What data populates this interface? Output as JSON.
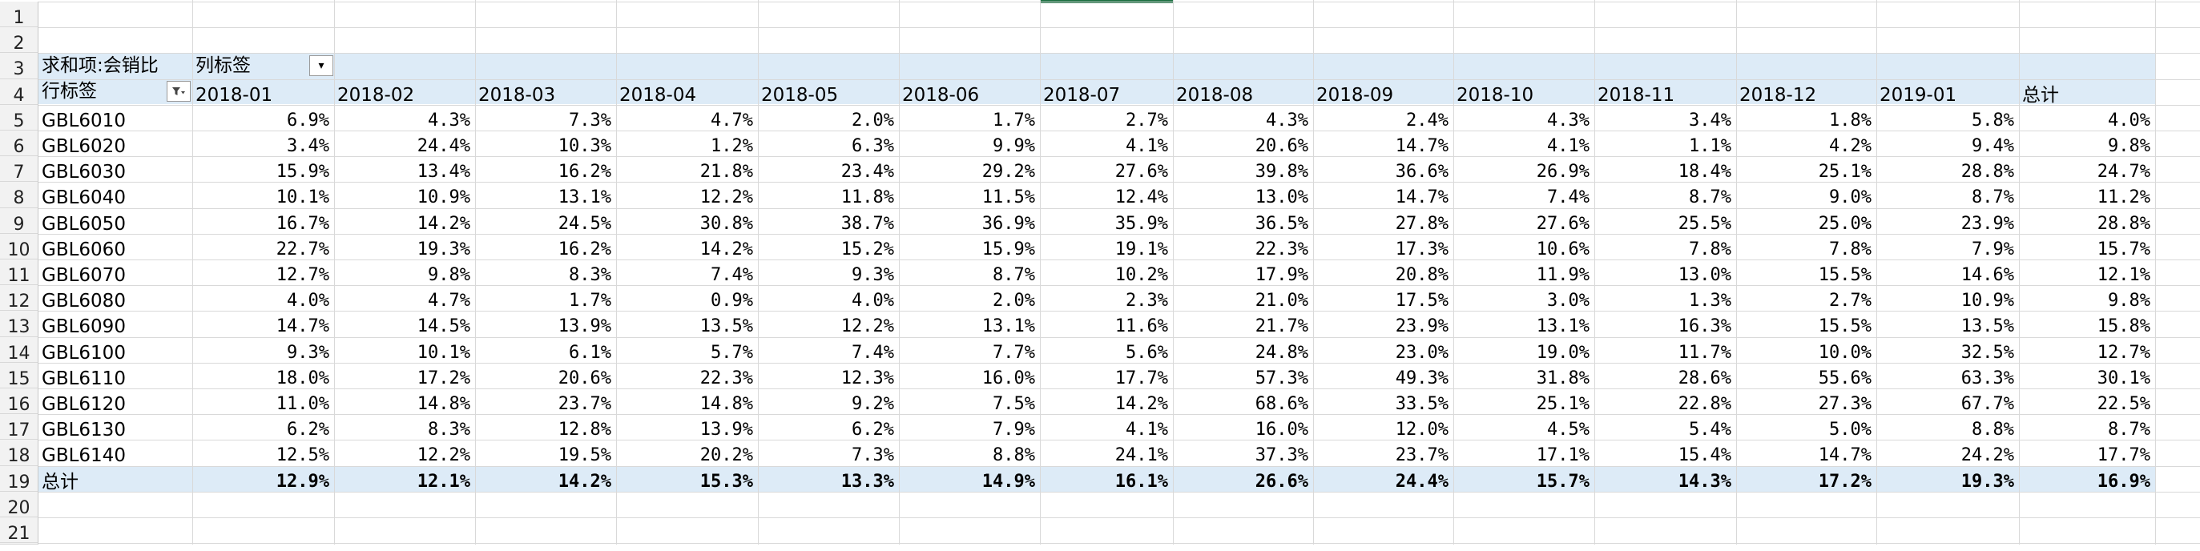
{
  "sheet": {
    "row_numbers": [
      "1",
      "2",
      "3",
      "4",
      "5",
      "6",
      "7",
      "8",
      "9",
      "10",
      "11",
      "12",
      "13",
      "14",
      "15",
      "16",
      "17",
      "18",
      "19",
      "20",
      "21"
    ],
    "pivot": {
      "values_label": "求和项:会销比",
      "column_labels": "列标签",
      "row_labels": "行标签",
      "columns": [
        "2018-01",
        "2018-02",
        "2018-03",
        "2018-04",
        "2018-05",
        "2018-06",
        "2018-07",
        "2018-08",
        "2018-09",
        "2018-10",
        "2018-11",
        "2018-12",
        "2019-01",
        "总计"
      ],
      "rows": [
        {
          "label": "GBL6010",
          "values": [
            "6.9%",
            "4.3%",
            "7.3%",
            "4.7%",
            "2.0%",
            "1.7%",
            "2.7%",
            "4.3%",
            "2.4%",
            "4.3%",
            "3.4%",
            "1.8%",
            "5.8%",
            "4.0%"
          ]
        },
        {
          "label": "GBL6020",
          "values": [
            "3.4%",
            "24.4%",
            "10.3%",
            "1.2%",
            "6.3%",
            "9.9%",
            "4.1%",
            "20.6%",
            "14.7%",
            "4.1%",
            "1.1%",
            "4.2%",
            "9.4%",
            "9.8%"
          ]
        },
        {
          "label": "GBL6030",
          "values": [
            "15.9%",
            "13.4%",
            "16.2%",
            "21.8%",
            "23.4%",
            "29.2%",
            "27.6%",
            "39.8%",
            "36.6%",
            "26.9%",
            "18.4%",
            "25.1%",
            "28.8%",
            "24.7%"
          ]
        },
        {
          "label": "GBL6040",
          "values": [
            "10.1%",
            "10.9%",
            "13.1%",
            "12.2%",
            "11.8%",
            "11.5%",
            "12.4%",
            "13.0%",
            "14.7%",
            "7.4%",
            "8.7%",
            "9.0%",
            "8.7%",
            "11.2%"
          ]
        },
        {
          "label": "GBL6050",
          "values": [
            "16.7%",
            "14.2%",
            "24.5%",
            "30.8%",
            "38.7%",
            "36.9%",
            "35.9%",
            "36.5%",
            "27.8%",
            "27.6%",
            "25.5%",
            "25.0%",
            "23.9%",
            "28.8%"
          ]
        },
        {
          "label": "GBL6060",
          "values": [
            "22.7%",
            "19.3%",
            "16.2%",
            "14.2%",
            "15.2%",
            "15.9%",
            "19.1%",
            "22.3%",
            "17.3%",
            "10.6%",
            "7.8%",
            "7.8%",
            "7.9%",
            "15.7%"
          ]
        },
        {
          "label": "GBL6070",
          "values": [
            "12.7%",
            "9.8%",
            "8.3%",
            "7.4%",
            "9.3%",
            "8.7%",
            "10.2%",
            "17.9%",
            "20.8%",
            "11.9%",
            "13.0%",
            "15.5%",
            "14.6%",
            "12.1%"
          ]
        },
        {
          "label": "GBL6080",
          "values": [
            "4.0%",
            "4.7%",
            "1.7%",
            "0.9%",
            "4.0%",
            "2.0%",
            "2.3%",
            "21.0%",
            "17.5%",
            "3.0%",
            "1.3%",
            "2.7%",
            "10.9%",
            "9.8%"
          ]
        },
        {
          "label": "GBL6090",
          "values": [
            "14.7%",
            "14.5%",
            "13.9%",
            "13.5%",
            "12.2%",
            "13.1%",
            "11.6%",
            "21.7%",
            "23.9%",
            "13.1%",
            "16.3%",
            "15.5%",
            "13.5%",
            "15.8%"
          ]
        },
        {
          "label": "GBL6100",
          "values": [
            "9.3%",
            "10.1%",
            "6.1%",
            "5.7%",
            "7.4%",
            "7.7%",
            "5.6%",
            "24.8%",
            "23.0%",
            "19.0%",
            "11.7%",
            "10.0%",
            "32.5%",
            "12.7%"
          ]
        },
        {
          "label": "GBL6110",
          "values": [
            "18.0%",
            "17.2%",
            "20.6%",
            "22.3%",
            "12.3%",
            "16.0%",
            "17.7%",
            "57.3%",
            "49.3%",
            "31.8%",
            "28.6%",
            "55.6%",
            "63.3%",
            "30.1%"
          ]
        },
        {
          "label": "GBL6120",
          "values": [
            "11.0%",
            "14.8%",
            "23.7%",
            "14.8%",
            "9.2%",
            "7.5%",
            "14.2%",
            "68.6%",
            "33.5%",
            "25.1%",
            "22.8%",
            "27.3%",
            "67.7%",
            "22.5%"
          ]
        },
        {
          "label": "GBL6130",
          "values": [
            "6.2%",
            "8.3%",
            "12.8%",
            "13.9%",
            "6.2%",
            "7.9%",
            "4.1%",
            "16.0%",
            "12.0%",
            "4.5%",
            "5.4%",
            "5.0%",
            "8.8%",
            "8.7%"
          ]
        },
        {
          "label": "GBL6140",
          "values": [
            "12.5%",
            "12.2%",
            "19.5%",
            "20.2%",
            "7.3%",
            "8.8%",
            "24.1%",
            "37.3%",
            "23.7%",
            "17.1%",
            "15.4%",
            "14.7%",
            "24.2%",
            "17.7%"
          ]
        }
      ],
      "total": {
        "label": "总计",
        "values": [
          "12.9%",
          "12.1%",
          "14.2%",
          "15.3%",
          "13.3%",
          "14.9%",
          "16.1%",
          "26.6%",
          "24.4%",
          "15.7%",
          "14.3%",
          "17.2%",
          "19.3%",
          "16.9%"
        ]
      }
    },
    "icons": {
      "dropdown": "dropdown-arrow-icon",
      "filter": "filter-icon"
    },
    "colors": {
      "header_band": "#ddebf7",
      "grid": "#d9d9d9",
      "selection": "#217346"
    }
  }
}
